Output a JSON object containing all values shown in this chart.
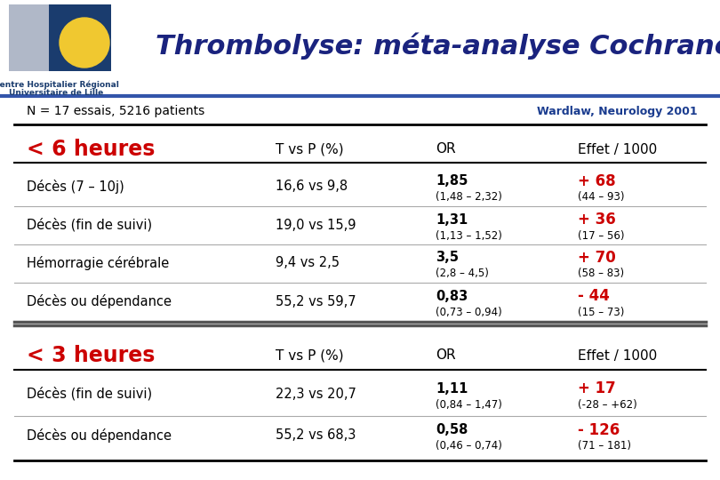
{
  "title": "Thrombolyse: méta-analyse Cochrane",
  "subtitle_left": "N = 17 essais, 5216 patients",
  "subtitle_right": "Wardlaw, Neurology 2001",
  "header6": [
    "< 6 heures",
    "T vs P (%)",
    "OR",
    "Effet / 1000"
  ],
  "rows6": [
    [
      "Décès (7 – 10j)",
      "16,6 vs 9,8",
      "1,85",
      "(1,48 – 2,32)",
      "+ 68",
      "(44 – 93)"
    ],
    [
      "Décès (fin de suivi)",
      "19,0 vs 15,9",
      "1,31",
      "(1,13 – 1,52)",
      "+ 36",
      "(17 – 56)"
    ],
    [
      "Hémorragie cérébrale",
      "9,4 vs 2,5",
      "3,5",
      "(2,8 – 4,5)",
      "+ 70",
      "(58 – 83)"
    ],
    [
      "Décès ou dépendance",
      "55,2 vs 59,7",
      "0,83",
      "(0,73 – 0,94)",
      "- 44",
      "(15 – 73)"
    ]
  ],
  "header3": [
    "< 3 heures",
    "T vs P (%)",
    "OR",
    "Effet / 1000"
  ],
  "rows3": [
    [
      "Décès (fin de suivi)",
      "22,3 vs 20,7",
      "1,11",
      "(0,84 – 1,47)",
      "+ 17",
      "(-28 – +62)"
    ],
    [
      "Décès ou dépendance",
      "55,2 vs 68,3",
      "0,58",
      "(0,46 – 0,74)",
      "- 126",
      "(71 – 181)"
    ]
  ],
  "bg_color": "#ffffff",
  "red_color": "#cc0000",
  "blue_ref_color": "#1a3c8f",
  "dark_navy": "#1a237e",
  "line_color": "#aaaaaa",
  "thick_line_color": "#555555",
  "logo_blue": "#1a3c6e",
  "logo_yellow": "#f0c830",
  "logo_grey": "#b0b8c8"
}
